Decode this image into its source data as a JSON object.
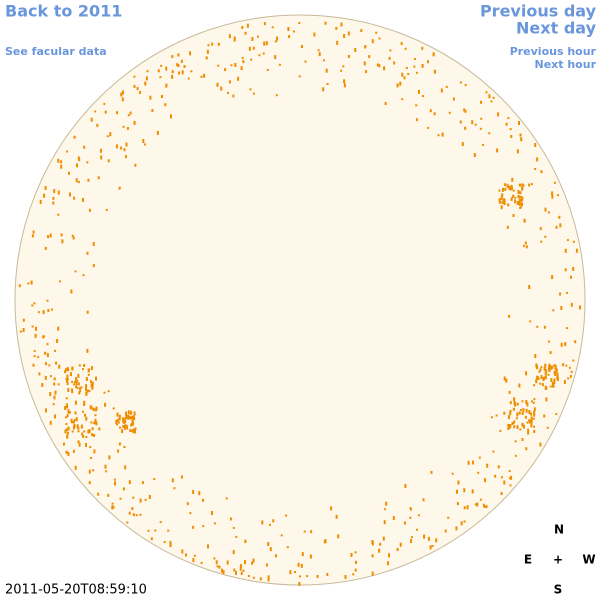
{
  "navigation": {
    "back": "Back to 2011",
    "facular_data": "See facular data",
    "previous_day": "Previous day",
    "next_day": "Next day",
    "previous_hour": "Previous hour",
    "next_hour": "Next hour"
  },
  "timestamp": "2011-05-20T08:59:10",
  "compass": {
    "north": "N",
    "east": "E",
    "center": "+",
    "west": "W",
    "south": "S"
  }
}
